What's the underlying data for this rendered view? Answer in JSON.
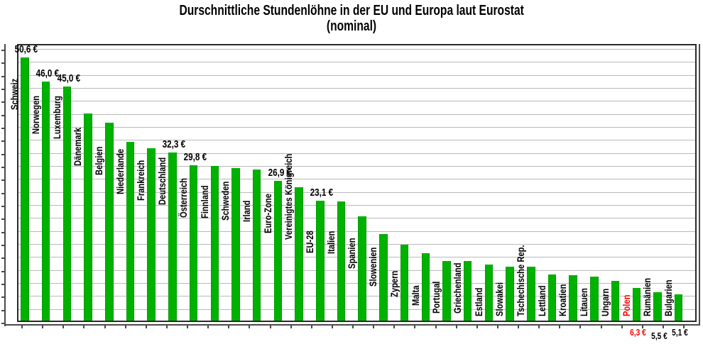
{
  "title": {
    "line1": "Durschnittliche Stundenlöhne in der EU und Europa laut Eurostat",
    "line2": "(nominal)"
  },
  "chart_data": {
    "type": "bar",
    "title": "Durschnittliche Stundenlöhne in der EU und Europa laut Eurostat",
    "subtitle": "(nominal)",
    "unit": "€",
    "legend": "none",
    "grid": "horizontal",
    "gridline_step": 2.5,
    "ylim": [
      0,
      53.5
    ],
    "bar_color": "#00b200",
    "highlight_color": "#ff0000",
    "highlighted_category": "Polen",
    "categories": [
      "Schweiz",
      "Norwegen",
      "Luxemburg",
      "Dänemark",
      "Belgien",
      "Niederlande",
      "Frankreich",
      "Deutschland",
      "Österreich",
      "Finnland",
      "Schweden",
      "Irland",
      "Euro-Zone",
      "Vereinigtes Königreich",
      "EU-28",
      "Italien",
      "Spanien",
      "Slowenien",
      "Zypern",
      "Malta",
      "Portugal",
      "Griechenland",
      "Estland",
      "Slowakei",
      "Tschechische Rep.",
      "Lettland",
      "Kroatien",
      "Litauen",
      "Ungarn",
      "Polen",
      "Rumänien",
      "Bulgarien"
    ],
    "values": [
      50.6,
      46.0,
      45.0,
      39.8,
      38.1,
      34.3,
      33.2,
      32.3,
      29.8,
      29.7,
      29.3,
      29.1,
      26.9,
      25.7,
      23.1,
      22.9,
      20.0,
      16.6,
      14.6,
      13.0,
      11.5,
      11.4,
      10.8,
      10.4,
      10.3,
      8.8,
      8.7,
      8.5,
      7.7,
      6.3,
      5.5,
      5.1
    ],
    "value_labels": [
      {
        "index": 0,
        "text": "50,6 €",
        "position": "above",
        "color": "#000000"
      },
      {
        "index": 1,
        "text": "46,0 €",
        "position": "above",
        "color": "#000000"
      },
      {
        "index": 2,
        "text": "45,0 €",
        "position": "above",
        "color": "#000000"
      },
      {
        "index": 7,
        "text": "32,3 €",
        "position": "above",
        "color": "#000000"
      },
      {
        "index": 8,
        "text": "29,8 €",
        "position": "above",
        "color": "#000000"
      },
      {
        "index": 12,
        "text": "26,9 €",
        "position": "above",
        "color": "#000000"
      },
      {
        "index": 14,
        "text": "23,1 €",
        "position": "above",
        "color": "#000000"
      },
      {
        "index": 29,
        "text": "6,3 €",
        "position": "below",
        "color": "#ff0000"
      },
      {
        "index": 30,
        "text": "5,5 €",
        "position": "below",
        "color": "#000000",
        "dy": 5
      },
      {
        "index": 31,
        "text": "5,1 €",
        "position": "below",
        "color": "#000000"
      }
    ]
  }
}
